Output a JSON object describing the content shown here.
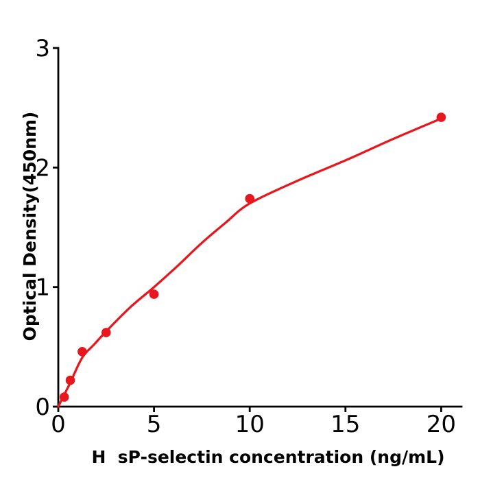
{
  "figure": {
    "background_color": "#ffffff",
    "axis_color": "#000000",
    "series_color": "#e8171d"
  },
  "chart_data": {
    "type": "scatter",
    "title": "",
    "xlabel": "H  sP-selectin concentration (ng/mL)",
    "ylabel": "Optical Density(450nm)",
    "xlim": [
      0,
      21.05
    ],
    "ylim": [
      0,
      3
    ],
    "x_ticks": [
      0,
      5,
      10,
      15,
      20
    ],
    "y_ticks": [
      0,
      1,
      2,
      3
    ],
    "grid": false,
    "legend": "none",
    "points": [
      [
        0.313,
        0.08
      ],
      [
        0.625,
        0.22
      ],
      [
        1.25,
        0.46
      ],
      [
        2.5,
        0.62
      ],
      [
        5,
        0.94
      ],
      [
        10,
        1.74
      ],
      [
        20,
        2.42
      ]
    ],
    "fit_curve": [
      [
        0,
        0
      ],
      [
        0.31,
        0.1
      ],
      [
        0.625,
        0.2
      ],
      [
        1.25,
        0.41
      ],
      [
        1.875,
        0.52
      ],
      [
        2.5,
        0.63
      ],
      [
        3.75,
        0.83
      ],
      [
        5,
        1.0
      ],
      [
        6.25,
        1.18
      ],
      [
        7.5,
        1.37
      ],
      [
        8.75,
        1.54
      ],
      [
        10,
        1.7
      ],
      [
        12.5,
        1.89
      ],
      [
        15,
        2.06
      ],
      [
        17.5,
        2.24
      ],
      [
        20,
        2.41
      ]
    ]
  }
}
